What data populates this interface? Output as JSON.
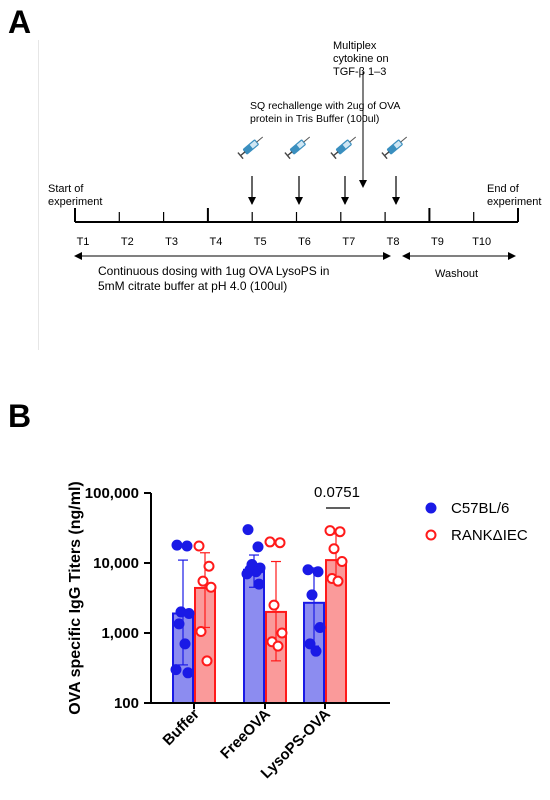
{
  "panels": {
    "a": "A",
    "b": "B"
  },
  "timeline": {
    "labels": [
      "T1",
      "T2",
      "T3",
      "T4",
      "T5",
      "T6",
      "T7",
      "T8",
      "T9",
      "T10"
    ],
    "start_label": "Start of\nexperiment",
    "end_label": "End of\nexperiment",
    "multiplex_label": "Multiplex\ncytokine on\nTGF-β 1–3",
    "rechallenge_label": "SQ rechallenge with 2ug of OVA\nprotein in Tris Buffer (100ul)",
    "dosing_label": "Continuous dosing with 1ug OVA  LysoPS in\n5mM citrate buffer at pH 4.0 (100ul)",
    "washout_label": "Washout",
    "syringe_icon": "syringe-icon",
    "syringe_color": "#3a8fbf"
  },
  "chart_data": {
    "type": "bar",
    "categories": [
      "Buffer",
      "FreeOVA",
      "LysoPS-OVA"
    ],
    "ylabel": "OVA specific IgG Titers (ng/ml)",
    "yscale": "log",
    "ylim": [
      100,
      100000
    ],
    "yticks": [
      100,
      1000,
      10000,
      100000
    ],
    "ytick_labels": [
      "100",
      "1,000",
      "10,000",
      "100,000"
    ],
    "legend_position": "right",
    "annotation": "0.0751",
    "series": [
      {
        "name": "C57BL/6",
        "color": "#1a1ae6",
        "fill": "#8c8cf0",
        "marker": "filled-circle",
        "values": [
          1900,
          8000,
          2700
        ],
        "error_upper": [
          11000,
          13000,
          8500
        ],
        "error_lower": [
          350,
          4500,
          650
        ],
        "points": [
          [
            18000,
            17500,
            2000,
            1900,
            1350,
            700,
            300,
            270
          ],
          [
            30000,
            17000,
            9500,
            8500,
            8000,
            7500,
            7000,
            5000
          ],
          [
            8000,
            7500,
            3500,
            1200,
            700,
            550
          ]
        ]
      },
      {
        "name": "RANKΔIEC",
        "color": "#ff1a1a",
        "fill": "#fa9a9a",
        "marker": "open-circle",
        "values": [
          4400,
          2000,
          11000
        ],
        "error_upper": [
          14000,
          10500,
          26000
        ],
        "error_lower": [
          1200,
          400,
          5500
        ],
        "points": [
          [
            17500,
            9000,
            5500,
            4500,
            1050,
            400
          ],
          [
            20000,
            19500,
            2500,
            1000,
            750,
            650
          ],
          [
            29000,
            28000,
            16000,
            10500,
            6000,
            5500
          ]
        ]
      }
    ]
  }
}
